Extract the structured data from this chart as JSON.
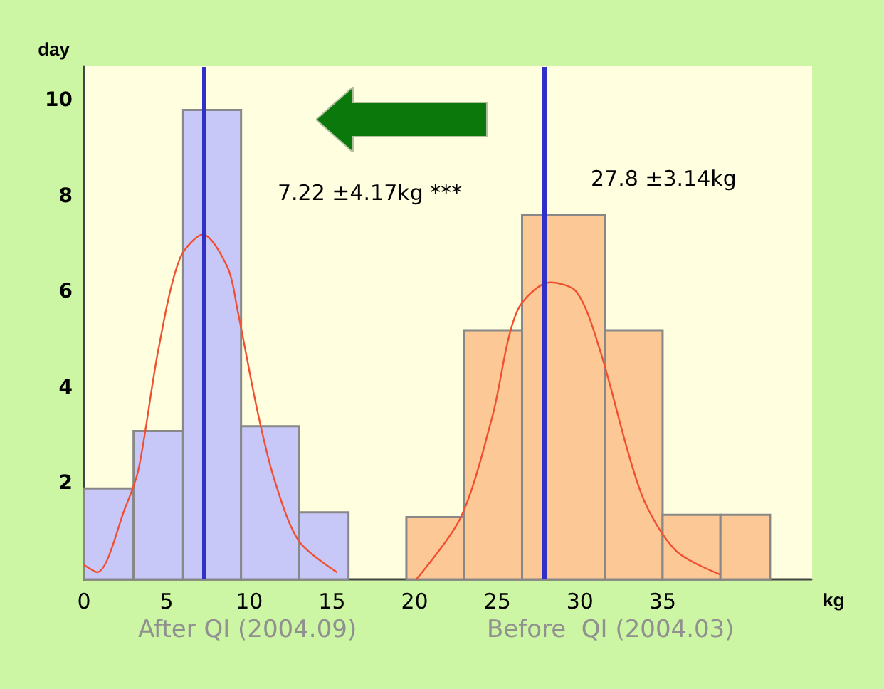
{
  "chart_data": {
    "type": "histogram",
    "xlabel": "kg",
    "ylabel": "day",
    "bins": [
      0,
      3,
      6,
      9.5,
      13,
      16,
      19.5,
      23,
      26.5,
      31.5,
      35,
      38.5,
      41.5
    ],
    "series": [
      {
        "color": "#c8c8f8",
        "values": [
          1.9,
          3.1,
          9.8,
          3.2,
          1.4,
          null,
          null,
          null,
          null,
          null,
          null,
          null
        ]
      },
      {
        "color": "#fcc896",
        "values": [
          null,
          null,
          null,
          null,
          null,
          null,
          1.3,
          5.2,
          7.6,
          5.2,
          1.35,
          1.35
        ]
      },
      {
        "type": "line",
        "color": "#f05030",
        "x": [
          0,
          0.8,
          2.5,
          3.3,
          4.5,
          5.8,
          7.2,
          8.7,
          9.3,
          10.5,
          11.5,
          13,
          15.3
        ],
        "values": [
          0.3,
          0.15,
          1.5,
          2.3,
          4.8,
          6.7,
          7.2,
          6.5,
          5.6,
          3.5,
          2.1,
          0.8,
          0.15
        ]
      },
      {
        "type": "line",
        "color": "#f05030",
        "x": [
          20.1,
          22.8,
          24.7,
          26.2,
          28.2,
          29.8,
          31.2,
          33.7,
          35.8,
          38.5
        ],
        "values": [
          0,
          1.3,
          3.4,
          5.6,
          6.2,
          6.0,
          4.8,
          1.8,
          0.6,
          0.1
        ]
      }
    ],
    "ref_lines": [
      {
        "axis": "x",
        "value": 7.22,
        "color": "#3030c8"
      },
      {
        "axis": "x",
        "value": 27.8,
        "color": "#3030c8"
      }
    ],
    "annotations": [
      "7.22 ±4.17kg ***",
      "27.8 ±3.14kg",
      "After QI (2004.09)",
      "Before  QI (2004.03)"
    ],
    "xlim": [
      0,
      44
    ],
    "xticks": [
      0,
      5,
      10,
      15,
      20,
      25,
      30,
      35
    ],
    "ylim": [
      0,
      10.7
    ],
    "yticks": [
      2,
      4,
      6,
      8,
      10
    ],
    "grid": false,
    "marker": "none",
    "line_style": "solid"
  }
}
